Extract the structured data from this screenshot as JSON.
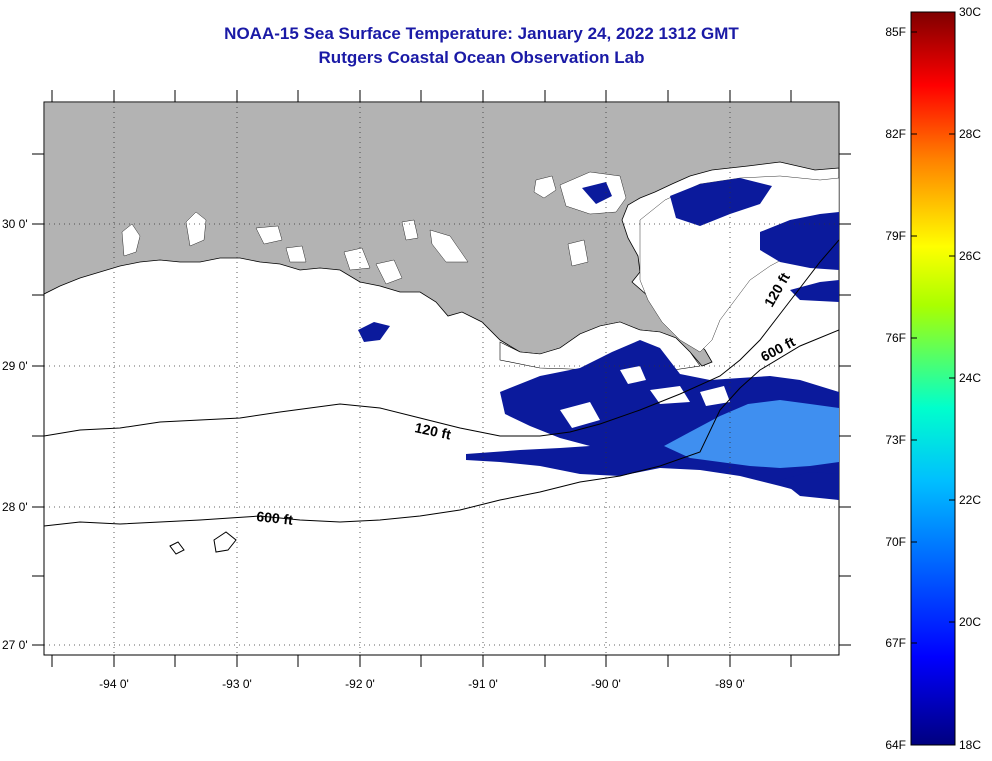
{
  "header": {
    "title": "NOAA-15 Sea Surface Temperature:  January 24, 2022 1312 GMT",
    "subtitle": "Rutgers Coastal Ocean Observation Lab"
  },
  "map": {
    "lon_labels": [
      "-94 0'",
      "-93 0'",
      "-92 0'",
      "-91 0'",
      "-90 0'",
      "-89 0'"
    ],
    "lat_labels": [
      "30 0'",
      "29 0'",
      "28 0'",
      "27 0'"
    ],
    "contour_labels": [
      "120 ft",
      "600 ft",
      "120 ft",
      "600 ft"
    ],
    "colors": {
      "land": "#b3b3b3",
      "cloud": "#ffffff",
      "cold_water": "#0b1a9c",
      "warm_patch": "#3f8ff0"
    }
  },
  "colorbar": {
    "f_labels": [
      "85F",
      "82F",
      "79F",
      "76F",
      "73F",
      "70F",
      "67F",
      "64F"
    ],
    "c_labels": [
      "30C",
      "28C",
      "26C",
      "24C",
      "22C",
      "20C",
      "18C"
    ],
    "colors": [
      "#00007f",
      "#0000ff",
      "#00ffff",
      "#ffff00",
      "#ff0000",
      "#7f0000"
    ]
  }
}
